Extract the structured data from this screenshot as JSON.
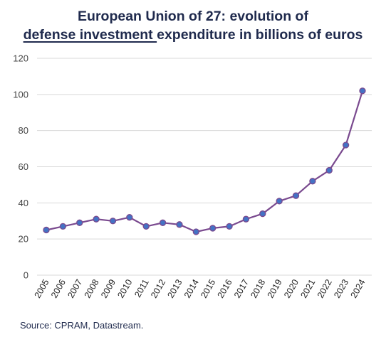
{
  "title": {
    "line1": "European Union of 27: evolution of",
    "line2_underlined": "defense investment ",
    "line2_rest": "expenditure in billions of euros"
  },
  "source": "Source: CPRAM, Datastream.",
  "colors": {
    "line": "#7a4a8f",
    "marker_fill": "#4472c4",
    "marker_stroke": "#7a4a8f",
    "grid": "#d9d9d9",
    "title": "#1f2a4d"
  },
  "chart_data": {
    "type": "line",
    "title": "European Union of 27: evolution of defense investment expenditure in billions of euros",
    "xlabel": "",
    "ylabel": "",
    "ylim": [
      0,
      120
    ],
    "yticks": [
      0,
      20,
      40,
      60,
      80,
      100,
      120
    ],
    "grid": true,
    "categories": [
      "2005",
      "2006",
      "2007",
      "2008",
      "2009",
      "2010",
      "2011",
      "2012",
      "2013",
      "2014",
      "2015",
      "2016",
      "2017",
      "2018",
      "2019",
      "2020",
      "2021",
      "2022",
      "2023",
      "2024"
    ],
    "series": [
      {
        "values": [
          25,
          27,
          29,
          31,
          30,
          32,
          27,
          29,
          28,
          24,
          26,
          27,
          31,
          34,
          41,
          44,
          52,
          58,
          72,
          102
        ]
      }
    ]
  }
}
